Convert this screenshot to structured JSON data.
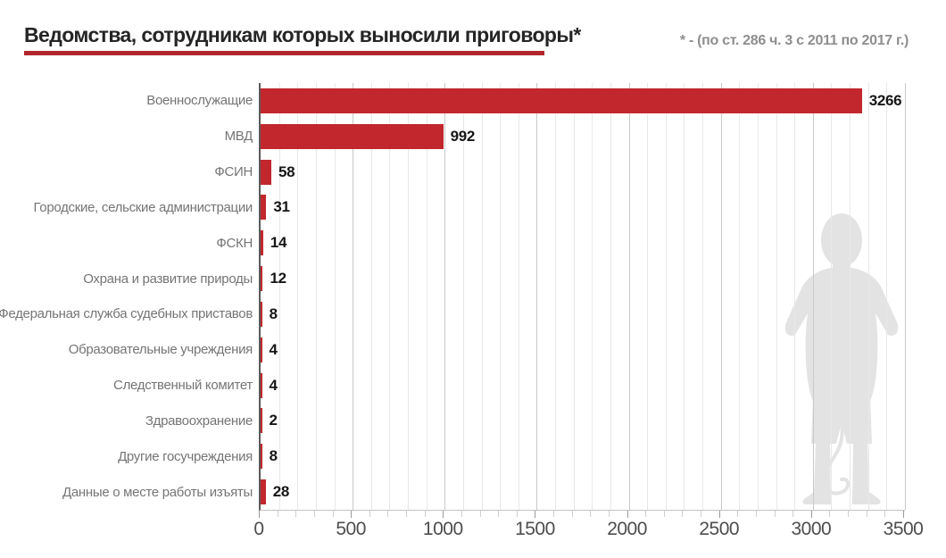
{
  "header": {
    "title": "Ведомства, сотрудникам которых выносили приговоры*",
    "subtitle": "* - (по ст. 286 ч. 3 с 2011 по 2017 г.)"
  },
  "chart_data": {
    "type": "bar",
    "orientation": "horizontal",
    "title": "Ведомства, сотрудникам которых выносили приговоры*",
    "subtitle": "* - (по ст. 286 ч. 3 с 2011 по 2017 г.)",
    "categories": [
      "Военнослужащие",
      "МВД",
      "ФСИН",
      "Городские, сельские администрации",
      "ФСКН",
      "Охрана и развитие природы",
      "Федеральная служба судебных приставов",
      "Образовательные учреждения",
      "Следственный комитет",
      "Здравоохранение",
      "Другие госучреждения",
      "Данные о месте работы изъяты"
    ],
    "values": [
      3266,
      992,
      58,
      31,
      14,
      12,
      8,
      4,
      4,
      2,
      8,
      28
    ],
    "xlabel": "",
    "ylabel": "",
    "xlim": [
      0,
      3500
    ],
    "x_ticks": [
      0,
      500,
      1000,
      1500,
      2000,
      2500,
      3000,
      3500
    ],
    "grid": {
      "vertical": true,
      "minor_step": 100,
      "major_step": 500
    },
    "legend": null,
    "colors": {
      "bar": "#c1272d",
      "title_underline": "#b1262b",
      "silhouette": "#e3e3e3"
    }
  }
}
